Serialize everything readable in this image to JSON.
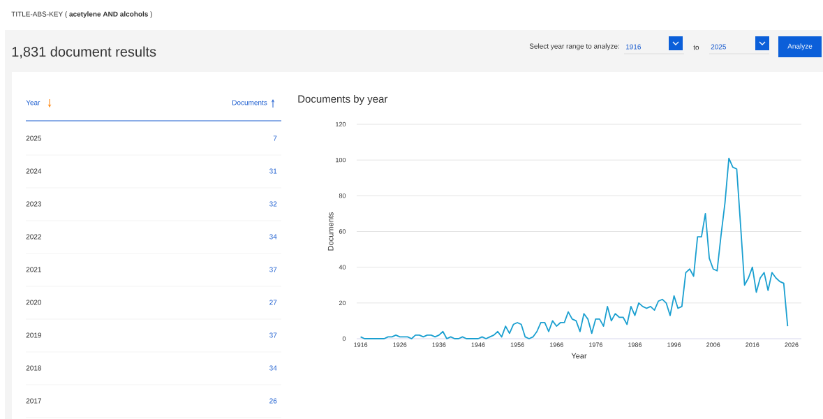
{
  "chart_data": {
    "type": "line",
    "title": "Documents by year",
    "xlabel": "Year",
    "ylabel": "Documents",
    "x": [
      1916,
      1917,
      1918,
      1919,
      1920,
      1921,
      1922,
      1923,
      1924,
      1925,
      1926,
      1927,
      1928,
      1929,
      1930,
      1931,
      1932,
      1933,
      1934,
      1935,
      1936,
      1937,
      1938,
      1939,
      1940,
      1941,
      1942,
      1943,
      1944,
      1945,
      1946,
      1947,
      1948,
      1949,
      1950,
      1951,
      1952,
      1953,
      1954,
      1955,
      1956,
      1957,
      1958,
      1959,
      1960,
      1961,
      1962,
      1963,
      1964,
      1965,
      1966,
      1967,
      1968,
      1969,
      1970,
      1971,
      1972,
      1973,
      1974,
      1975,
      1976,
      1977,
      1978,
      1979,
      1980,
      1981,
      1982,
      1983,
      1984,
      1985,
      1986,
      1987,
      1988,
      1989,
      1990,
      1991,
      1992,
      1993,
      1994,
      1995,
      1996,
      1997,
      1998,
      1999,
      2000,
      2001,
      2002,
      2003,
      2004,
      2005,
      2006,
      2007,
      2008,
      2009,
      2010,
      2011,
      2012,
      2013,
      2014,
      2015,
      2016,
      2017,
      2018,
      2019,
      2020,
      2021,
      2022,
      2023,
      2024,
      2025
    ],
    "values": [
      1,
      0,
      0,
      0,
      0,
      0,
      0,
      1,
      1,
      2,
      1,
      1,
      1,
      0,
      2,
      2,
      1,
      2,
      2,
      1,
      2,
      4,
      0,
      1,
      0,
      0,
      1,
      0,
      0,
      0,
      0,
      1,
      0,
      1,
      2,
      4,
      1,
      7,
      3,
      8,
      9,
      8,
      1,
      0,
      1,
      4,
      9,
      9,
      4,
      10,
      7,
      9,
      9,
      15,
      11,
      10,
      4,
      14,
      11,
      3,
      11,
      11,
      7,
      18,
      10,
      14,
      12,
      12,
      8,
      18,
      13,
      20,
      18,
      17,
      18,
      16,
      21,
      22,
      20,
      13,
      24,
      17,
      18,
      37,
      39,
      35,
      57,
      57,
      70,
      45,
      39,
      38,
      58,
      76,
      101,
      96,
      95,
      63,
      30,
      34,
      40,
      26,
      34,
      37,
      27,
      37,
      34,
      32,
      31,
      7
    ],
    "color": "#1a9fd0",
    "marker": "none",
    "line_style": "solid",
    "grid": "y",
    "xlim": [
      1915,
      2028.5
    ],
    "ylim": [
      0,
      120
    ],
    "xticks": [
      1916,
      1926,
      1936,
      1946,
      1956,
      1966,
      1976,
      1986,
      1996,
      2006,
      2016,
      2026
    ],
    "yticks": [
      0,
      20,
      40,
      60,
      80,
      100,
      120
    ],
    "annotations": [
      "TITLE-ABS-KEY ( **acetylene  AND alcohols** )",
      "1,831 document results",
      "Select year range to analyze:",
      "1916",
      "to",
      "2025",
      "Analyze",
      "Year",
      "Documents",
      "2025",
      "7",
      "2024",
      "31",
      "2023",
      "32",
      "2022",
      "34",
      "2021",
      "37",
      "2020",
      "27",
      "2019",
      "37",
      "2018",
      "34",
      "2017",
      "26"
    ]
  }
}
